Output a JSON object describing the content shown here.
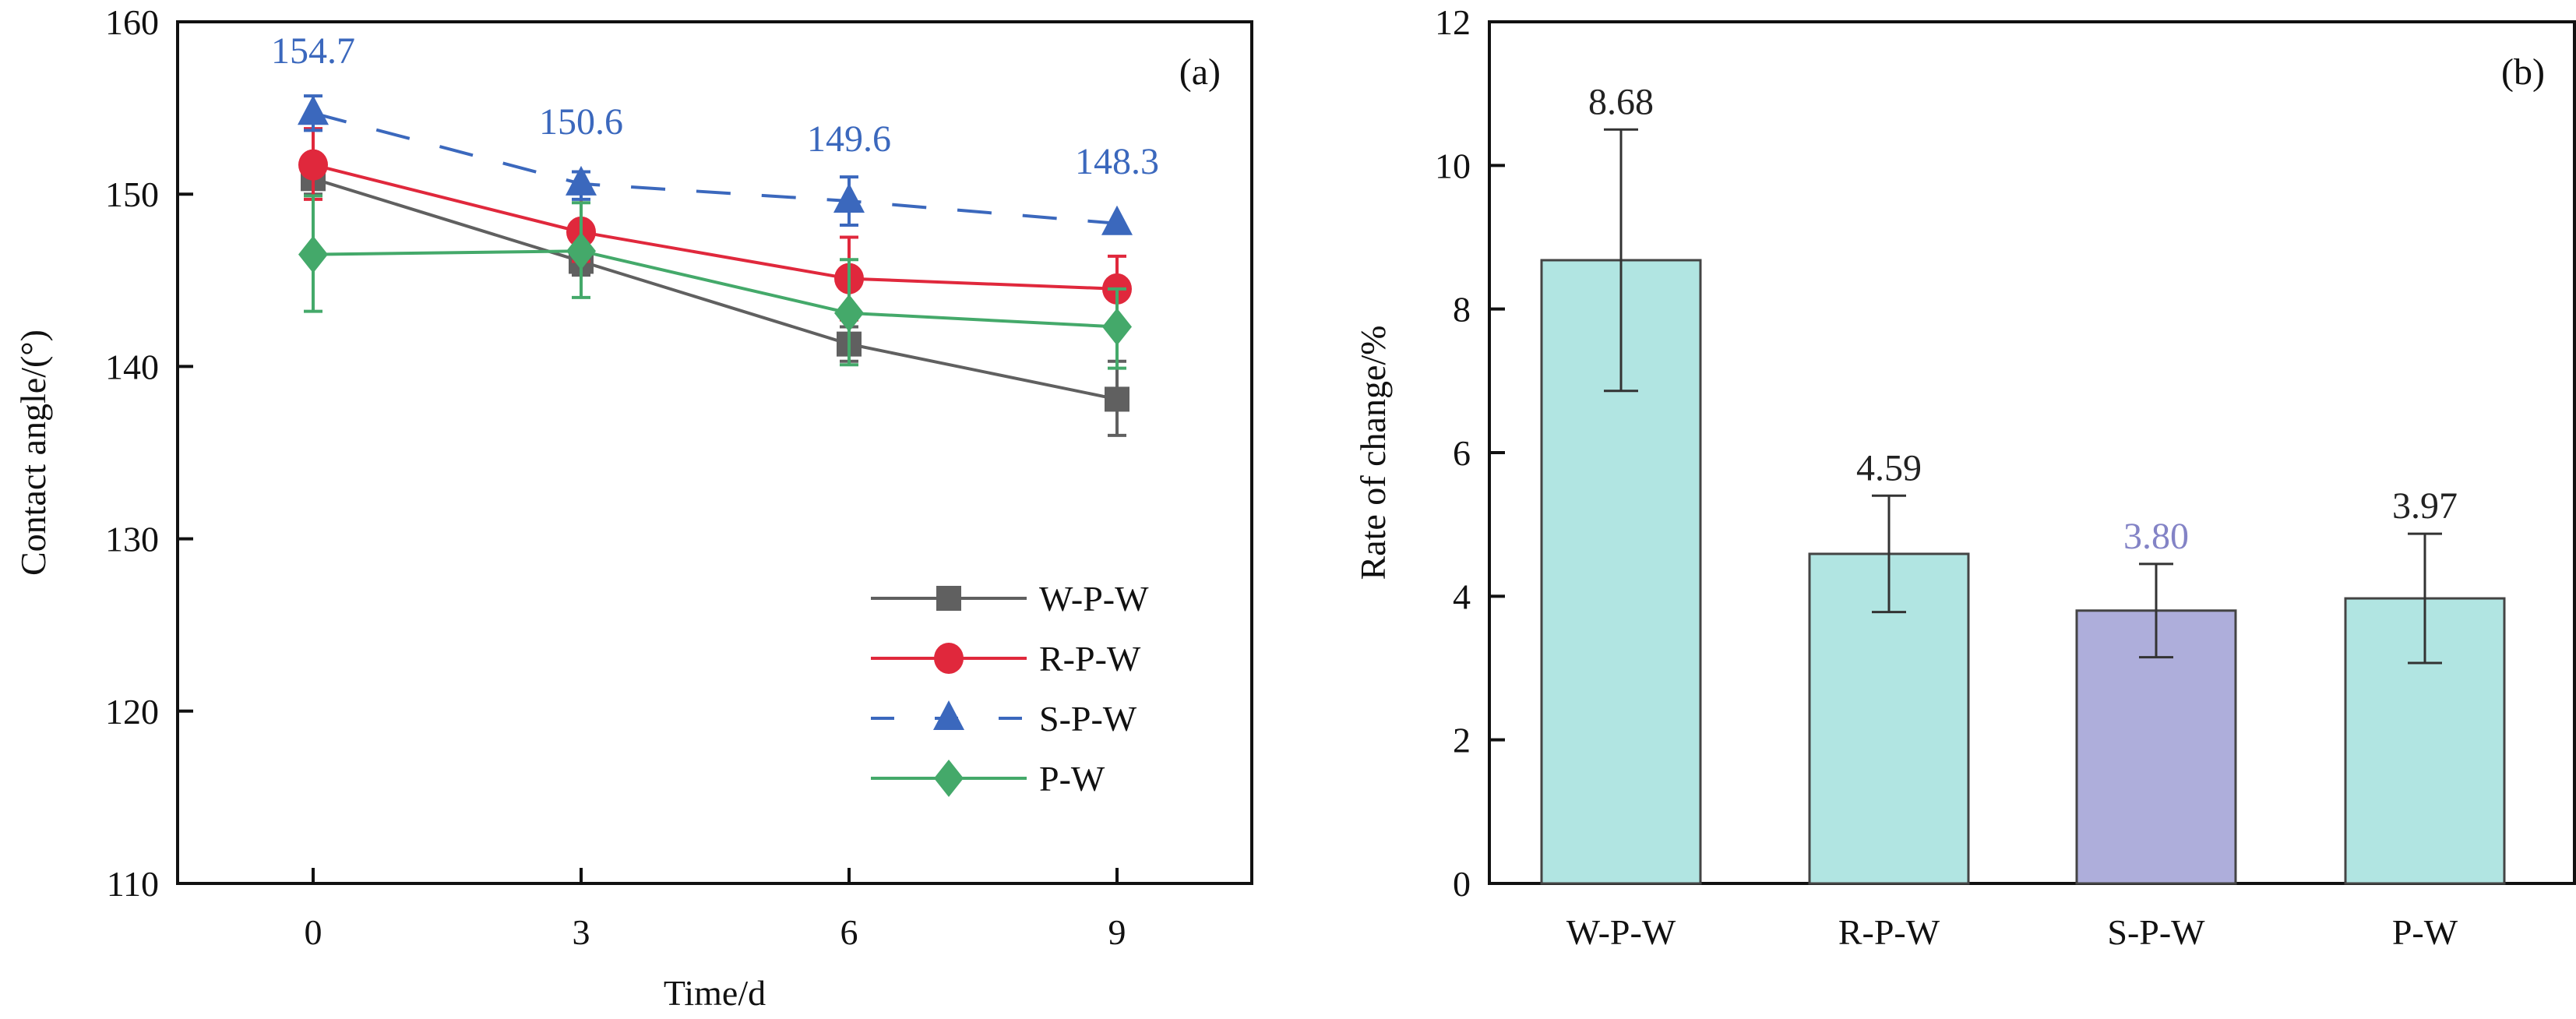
{
  "chart_data": [
    {
      "panel": "(a)",
      "type": "line",
      "title": "",
      "xlabel": "Time/d",
      "ylabel": "Contact angle/(°)",
      "x": [
        0,
        3,
        6,
        9
      ],
      "x_ticks": [
        "0",
        "3",
        "6",
        "9"
      ],
      "ylim": [
        110,
        160
      ],
      "y_ticks": [
        "110",
        "120",
        "130",
        "140",
        "150",
        "160"
      ],
      "y_tick_values": [
        110,
        120,
        130,
        140,
        150,
        160
      ],
      "grid": false,
      "legend_position": "bottom-right",
      "series": [
        {
          "name": "W-P-W",
          "color": "#606060",
          "marker": "square",
          "dash": "solid",
          "values": [
            150.9,
            146.1,
            141.3,
            138.1
          ],
          "err_low": [
            150.0,
            145.3,
            140.3,
            136.0
          ],
          "err_high": [
            151.6,
            146.9,
            142.3,
            140.3
          ]
        },
        {
          "name": "R-P-W",
          "color": "#e0283c",
          "marker": "circle",
          "dash": "solid",
          "values": [
            151.7,
            147.8,
            145.1,
            144.5
          ],
          "err_low": [
            149.7,
            146.1,
            142.7,
            142.6
          ],
          "err_high": [
            153.8,
            150.2,
            147.5,
            146.4
          ]
        },
        {
          "name": "S-P-W",
          "color": "#3b68bd",
          "marker": "triangle",
          "dash": "dashed",
          "values": [
            154.7,
            150.6,
            149.6,
            148.3
          ],
          "err_low": [
            153.7,
            149.7,
            148.2,
            148.3
          ],
          "err_high": [
            155.7,
            151.3,
            151.0,
            148.3
          ]
        },
        {
          "name": "P-W",
          "color": "#44a96a",
          "marker": "diamond",
          "dash": "solid",
          "values": [
            146.5,
            146.7,
            143.1,
            142.3
          ],
          "err_low": [
            143.2,
            144.0,
            140.1,
            139.9
          ],
          "err_high": [
            149.9,
            149.5,
            146.2,
            144.5
          ]
        }
      ],
      "annotations": [
        {
          "x": 0,
          "text": "154.7",
          "series": "S-P-W"
        },
        {
          "x": 3,
          "text": "150.6",
          "series": "S-P-W"
        },
        {
          "x": 6,
          "text": "149.6",
          "series": "S-P-W"
        },
        {
          "x": 9,
          "text": "148.3",
          "series": "S-P-W"
        }
      ]
    },
    {
      "panel": "(b)",
      "type": "bar",
      "title": "",
      "xlabel": "",
      "ylabel": "Rate of change/%",
      "categories": [
        "W-P-W",
        "R-P-W",
        "S-P-W",
        "P-W"
      ],
      "values": [
        8.68,
        4.59,
        3.8,
        3.97
      ],
      "value_labels": [
        "8.68",
        "4.59",
        "3.80",
        "3.97"
      ],
      "err_low": [
        6.86,
        3.78,
        3.15,
        3.07
      ],
      "err_high": [
        10.5,
        5.4,
        4.45,
        4.87
      ],
      "bar_colors": [
        "#b1e5e2",
        "#b1e5e2",
        "#aeaedb",
        "#b1e5e2"
      ],
      "label_colors": [
        "#222222",
        "#222222",
        "#8383c6",
        "#222222"
      ],
      "ylim": [
        0,
        12
      ],
      "y_ticks": [
        "0",
        "2",
        "4",
        "6",
        "8",
        "10",
        "12"
      ],
      "y_tick_values": [
        0,
        2,
        4,
        6,
        8,
        10,
        12
      ],
      "grid": false,
      "legend_position": "none"
    }
  ]
}
